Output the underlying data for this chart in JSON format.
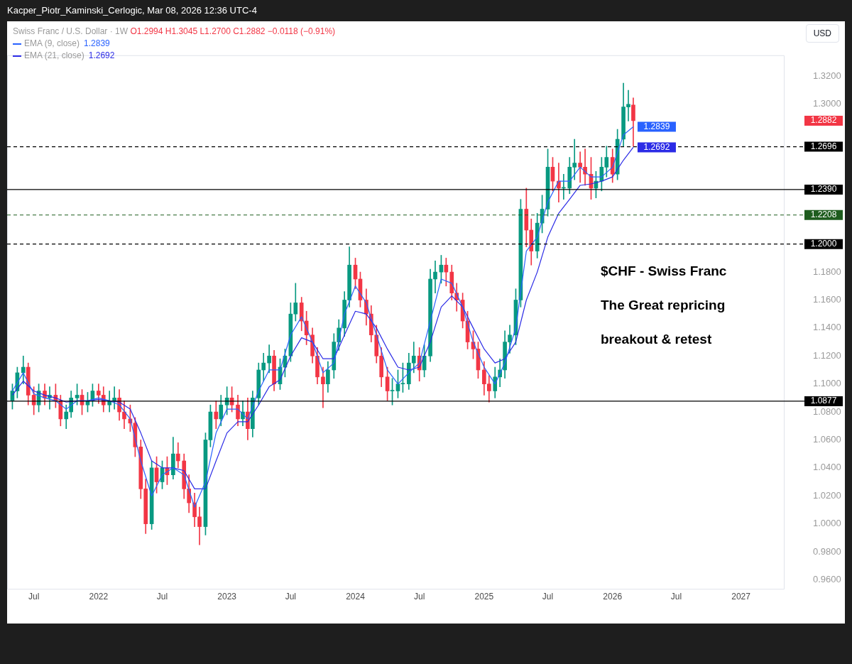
{
  "chart_data": {
    "type": "candlestick",
    "title": "Swiss Franc / U.S. Dollar · 1W",
    "subtitle": "O1.2994 H1.3045 L1.2700 C1.2882 −0.0118 (−0.91%)",
    "ylabel": "USD",
    "annotations": [
      "Kacper_Piotr_Kaminski_Cerlogic, Mar 08, 2026 12:36 UTC-4",
      "$CHF - Swiss Franc",
      "The Great repricing",
      "breakout & retest"
    ],
    "colors": [
      "#089981",
      "#089981",
      "#089981",
      "#f23645",
      "#f23645",
      "#089981",
      "#f23645",
      "#089981",
      "#f23645",
      "#f23645",
      "#089981",
      "#089981",
      "#089981",
      "#f23645",
      "#089981",
      "#089981",
      "#f23645",
      "#f23645",
      "#089981",
      "#089981",
      "#f23645",
      "#f23645",
      "#f23645",
      "#f23645",
      "#f23645",
      "#f23645",
      "#089981",
      "#f23645",
      "#089981",
      "#f23645",
      "#089981",
      "#f23645",
      "#f23645",
      "#f23645",
      "#f23645",
      "#f23645",
      "#089981",
      "#089981",
      "#f23645",
      "#089981",
      "#089981",
      "#f23645",
      "#f23645",
      "#089981",
      "#f23645",
      "#089981",
      "#089981",
      "#089981",
      "#089981",
      "#f23645",
      "#089981",
      "#089981",
      "#089981",
      "#089981",
      "#f23645",
      "#f23645",
      "#f23645",
      "#f23645",
      "#f23645",
      "#089981",
      "#089981",
      "#089981",
      "#089981",
      "#089981",
      "#f23645",
      "#f23645",
      "#f23645",
      "#f23645",
      "#f23645",
      "#f23645",
      "#f23645",
      "#089981",
      "#089981",
      "#089981",
      "#089981",
      "#089981",
      "#f23645",
      "#089981",
      "#089981",
      "#089981",
      "#089981",
      "#f23645",
      "#f23645",
      "#f23645",
      "#f23645",
      "#f23645",
      "#f23645",
      "#f23645",
      "#f23645",
      "#f23645",
      "#089981",
      "#089981",
      "#089981",
      "#089981",
      "#089981",
      "#089981",
      "#f23645",
      "#f23645",
      "#089981",
      "#089981",
      "#089981",
      "#f23645",
      "#f23645",
      "#089981",
      "#089981",
      "#089981",
      "#f23645",
      "#f23645",
      "#f23645",
      "#089981",
      "#089981",
      "#089981",
      "#f23645",
      "#089981",
      "#089981",
      "#089981",
      "#f23645"
    ],
    "value_labels": [
      null,
      null,
      null,
      null,
      null,
      null,
      null,
      null,
      null,
      null,
      null,
      null,
      null,
      null,
      null,
      null,
      null,
      null,
      null,
      null,
      null,
      null,
      null,
      null,
      null,
      null,
      null,
      null,
      null,
      null,
      null,
      null,
      null,
      null,
      null,
      null,
      null,
      null,
      null,
      null,
      null,
      null,
      null,
      null,
      null,
      null,
      null,
      null,
      null,
      null,
      null,
      null,
      null,
      null,
      null,
      null,
      null,
      null,
      null,
      null,
      null,
      null,
      null,
      null,
      null,
      null,
      null,
      null,
      null,
      null,
      null,
      null,
      null,
      null,
      null,
      null,
      null,
      null,
      null,
      null,
      null,
      null,
      null,
      null,
      null,
      null,
      null,
      null,
      null,
      null,
      null,
      null,
      null,
      null,
      null,
      null,
      null,
      null,
      null,
      null,
      null,
      null,
      null,
      null,
      null,
      null,
      null,
      null,
      null,
      null,
      null,
      null,
      null,
      null,
      null,
      null,
      "1.2882"
    ],
    "x": [
      "2021-05-01",
      "2021-05-15",
      "2021-06-01",
      "2021-06-15",
      "2021-07-01",
      "2021-07-15",
      "2021-08-01",
      "2021-08-15",
      "2021-09-01",
      "2021-09-15",
      "2021-10-01",
      "2021-10-15",
      "2021-11-01",
      "2021-11-15",
      "2021-12-01",
      "2021-12-15",
      "2022-01-01",
      "2022-01-15",
      "2022-02-01",
      "2022-02-15",
      "2022-03-01",
      "2022-03-15",
      "2022-04-01",
      "2022-04-15",
      "2022-05-01",
      "2022-05-15",
      "2022-06-01",
      "2022-06-15",
      "2022-07-01",
      "2022-07-15",
      "2022-08-01",
      "2022-08-15",
      "2022-09-01",
      "2022-09-15",
      "2022-10-01",
      "2022-10-15",
      "2022-11-01",
      "2022-11-15",
      "2022-12-01",
      "2022-12-15",
      "2023-01-01",
      "2023-01-15",
      "2023-02-01",
      "2023-02-15",
      "2023-03-01",
      "2023-03-15",
      "2023-04-01",
      "2023-04-15",
      "2023-05-01",
      "2023-05-15",
      "2023-06-01",
      "2023-06-15",
      "2023-07-01",
      "2023-07-15",
      "2023-08-01",
      "2023-08-15",
      "2023-09-01",
      "2023-09-15",
      "2023-10-01",
      "2023-10-15",
      "2023-11-01",
      "2023-11-15",
      "2023-12-01",
      "2023-12-15",
      "2024-01-01",
      "2024-01-15",
      "2024-02-01",
      "2024-02-15",
      "2024-03-01",
      "2024-03-15",
      "2024-04-01",
      "2024-04-15",
      "2024-05-01",
      "2024-05-15",
      "2024-06-01",
      "2024-06-15",
      "2024-07-01",
      "2024-07-15",
      "2024-08-01",
      "2024-08-15",
      "2024-09-01",
      "2024-09-15",
      "2024-10-01",
      "2024-10-15",
      "2024-11-01",
      "2024-11-15",
      "2024-12-01",
      "2024-12-15",
      "2025-01-01",
      "2025-01-15",
      "2025-02-01",
      "2025-02-15",
      "2025-03-01",
      "2025-03-15",
      "2025-04-01",
      "2025-04-15",
      "2025-05-01",
      "2025-05-15",
      "2025-06-01",
      "2025-06-15",
      "2025-07-01",
      "2025-07-15",
      "2025-08-01",
      "2025-08-15",
      "2025-09-01",
      "2025-09-15",
      "2025-10-01",
      "2025-10-15",
      "2025-11-01",
      "2025-11-15",
      "2025-12-01",
      "2025-12-15",
      "2026-01-01",
      "2026-01-15",
      "2026-02-01",
      "2026-02-15",
      "2026-03-01"
    ],
    "ohlc": [
      [
        1.088,
        1.1,
        1.082,
        1.095
      ],
      [
        1.095,
        1.112,
        1.09,
        1.108
      ],
      [
        1.108,
        1.12,
        1.1,
        1.112
      ],
      [
        1.112,
        1.115,
        1.085,
        1.092
      ],
      [
        1.092,
        1.098,
        1.078,
        1.085
      ],
      [
        1.085,
        1.1,
        1.08,
        1.095
      ],
      [
        1.095,
        1.1,
        1.085,
        1.09
      ],
      [
        1.09,
        1.098,
        1.082,
        1.092
      ],
      [
        1.092,
        1.1,
        1.083,
        1.088
      ],
      [
        1.088,
        1.092,
        1.07,
        1.075
      ],
      [
        1.075,
        1.085,
        1.068,
        1.08
      ],
      [
        1.08,
        1.095,
        1.076,
        1.09
      ],
      [
        1.09,
        1.1,
        1.085,
        1.092
      ],
      [
        1.092,
        1.096,
        1.078,
        1.085
      ],
      [
        1.085,
        1.094,
        1.08,
        1.088
      ],
      [
        1.088,
        1.1,
        1.084,
        1.095
      ],
      [
        1.095,
        1.1,
        1.086,
        1.092
      ],
      [
        1.092,
        1.098,
        1.08,
        1.085
      ],
      [
        1.085,
        1.095,
        1.08,
        1.088
      ],
      [
        1.088,
        1.098,
        1.082,
        1.09
      ],
      [
        1.09,
        1.096,
        1.074,
        1.08
      ],
      [
        1.08,
        1.088,
        1.068,
        1.075
      ],
      [
        1.075,
        1.085,
        1.066,
        1.072
      ],
      [
        1.072,
        1.076,
        1.048,
        1.055
      ],
      [
        1.055,
        1.06,
        1.018,
        1.025
      ],
      [
        1.025,
        1.032,
        0.993,
        1.0
      ],
      [
        1.0,
        1.045,
        0.996,
        1.04
      ],
      [
        1.04,
        1.048,
        1.022,
        1.03
      ],
      [
        1.03,
        1.045,
        1.025,
        1.04
      ],
      [
        1.04,
        1.048,
        1.028,
        1.035
      ],
      [
        1.035,
        1.062,
        1.032,
        1.05
      ],
      [
        1.05,
        1.058,
        1.04,
        1.045
      ],
      [
        1.045,
        1.05,
        1.018,
        1.025
      ],
      [
        1.025,
        1.035,
        1.008,
        1.015
      ],
      [
        1.015,
        1.022,
        0.998,
        1.005
      ],
      [
        1.005,
        1.012,
        0.985,
        0.998
      ],
      [
        0.998,
        1.065,
        0.992,
        1.06
      ],
      [
        1.06,
        1.085,
        1.055,
        1.08
      ],
      [
        1.08,
        1.088,
        1.068,
        1.075
      ],
      [
        1.075,
        1.092,
        1.07,
        1.085
      ],
      [
        1.085,
        1.098,
        1.078,
        1.09
      ],
      [
        1.09,
        1.098,
        1.08,
        1.085
      ],
      [
        1.085,
        1.092,
        1.07,
        1.075
      ],
      [
        1.075,
        1.088,
        1.07,
        1.08
      ],
      [
        1.08,
        1.09,
        1.06,
        1.068
      ],
      [
        1.068,
        1.095,
        1.062,
        1.09
      ],
      [
        1.09,
        1.115,
        1.085,
        1.11
      ],
      [
        1.11,
        1.122,
        1.102,
        1.115
      ],
      [
        1.115,
        1.128,
        1.108,
        1.12
      ],
      [
        1.12,
        1.124,
        1.095,
        1.1
      ],
      [
        1.1,
        1.118,
        1.096,
        1.112
      ],
      [
        1.112,
        1.125,
        1.105,
        1.12
      ],
      [
        1.12,
        1.158,
        1.116,
        1.15
      ],
      [
        1.15,
        1.172,
        1.145,
        1.158
      ],
      [
        1.158,
        1.162,
        1.138,
        1.145
      ],
      [
        1.145,
        1.152,
        1.128,
        1.135
      ],
      [
        1.135,
        1.14,
        1.115,
        1.12
      ],
      [
        1.12,
        1.126,
        1.1,
        1.105
      ],
      [
        1.105,
        1.112,
        1.083,
        1.1
      ],
      [
        1.1,
        1.116,
        1.094,
        1.11
      ],
      [
        1.11,
        1.136,
        1.104,
        1.13
      ],
      [
        1.13,
        1.146,
        1.124,
        1.14
      ],
      [
        1.14,
        1.166,
        1.134,
        1.16
      ],
      [
        1.16,
        1.198,
        1.155,
        1.185
      ],
      [
        1.185,
        1.19,
        1.168,
        1.175
      ],
      [
        1.175,
        1.18,
        1.155,
        1.16
      ],
      [
        1.16,
        1.168,
        1.142,
        1.15
      ],
      [
        1.15,
        1.156,
        1.13,
        1.135
      ],
      [
        1.135,
        1.142,
        1.115,
        1.12
      ],
      [
        1.12,
        1.126,
        1.098,
        1.105
      ],
      [
        1.105,
        1.112,
        1.088,
        1.095
      ],
      [
        1.095,
        1.104,
        1.085,
        1.095
      ],
      [
        1.095,
        1.11,
        1.09,
        1.1
      ],
      [
        1.1,
        1.115,
        1.094,
        1.1
      ],
      [
        1.1,
        1.122,
        1.096,
        1.115
      ],
      [
        1.115,
        1.13,
        1.108,
        1.12
      ],
      [
        1.12,
        1.126,
        1.102,
        1.11
      ],
      [
        1.11,
        1.128,
        1.105,
        1.12
      ],
      [
        1.12,
        1.182,
        1.116,
        1.175
      ],
      [
        1.175,
        1.188,
        1.165,
        1.18
      ],
      [
        1.18,
        1.192,
        1.172,
        1.185
      ],
      [
        1.185,
        1.19,
        1.17,
        1.18
      ],
      [
        1.18,
        1.185,
        1.16,
        1.165
      ],
      [
        1.165,
        1.172,
        1.152,
        1.16
      ],
      [
        1.16,
        1.165,
        1.14,
        1.145
      ],
      [
        1.145,
        1.152,
        1.125,
        1.13
      ],
      [
        1.13,
        1.138,
        1.118,
        1.125
      ],
      [
        1.125,
        1.13,
        1.104,
        1.11
      ],
      [
        1.11,
        1.116,
        1.092,
        1.1
      ],
      [
        1.1,
        1.106,
        1.087,
        1.095
      ],
      [
        1.095,
        1.112,
        1.09,
        1.105
      ],
      [
        1.105,
        1.118,
        1.098,
        1.11
      ],
      [
        1.11,
        1.138,
        1.104,
        1.13
      ],
      [
        1.13,
        1.142,
        1.122,
        1.135
      ],
      [
        1.135,
        1.168,
        1.128,
        1.16
      ],
      [
        1.16,
        1.232,
        1.155,
        1.225
      ],
      [
        1.225,
        1.24,
        1.198,
        1.21
      ],
      [
        1.21,
        1.218,
        1.185,
        1.195
      ],
      [
        1.195,
        1.222,
        1.19,
        1.215
      ],
      [
        1.215,
        1.235,
        1.208,
        1.225
      ],
      [
        1.225,
        1.268,
        1.22,
        1.255
      ],
      [
        1.255,
        1.262,
        1.238,
        1.245
      ],
      [
        1.245,
        1.258,
        1.23,
        1.24
      ],
      [
        1.24,
        1.25,
        1.232,
        1.24
      ],
      [
        1.24,
        1.262,
        1.236,
        1.255
      ],
      [
        1.255,
        1.275,
        1.246,
        1.258
      ],
      [
        1.258,
        1.266,
        1.244,
        1.255
      ],
      [
        1.255,
        1.268,
        1.242,
        1.25
      ],
      [
        1.25,
        1.262,
        1.232,
        1.24
      ],
      [
        1.24,
        1.252,
        1.233,
        1.245
      ],
      [
        1.245,
        1.262,
        1.238,
        1.255
      ],
      [
        1.255,
        1.27,
        1.248,
        1.262
      ],
      [
        1.262,
        1.268,
        1.244,
        1.25
      ],
      [
        1.25,
        1.282,
        1.246,
        1.275
      ],
      [
        1.275,
        1.315,
        1.27,
        1.298
      ],
      [
        1.298,
        1.31,
        1.288,
        1.3
      ],
      [
        1.2994,
        1.3045,
        1.27,
        1.2882
      ]
    ],
    "series": [
      {
        "name": "EMA (9, close)",
        "type": "line",
        "color": "#2962ff",
        "x": [
          "2021-05-01",
          "2021-06-01",
          "2021-07-01",
          "2021-08-01",
          "2021-09-01",
          "2021-10-01",
          "2021-11-01",
          "2021-12-01",
          "2022-01-01",
          "2022-02-01",
          "2022-03-01",
          "2022-04-01",
          "2022-05-01",
          "2022-06-01",
          "2022-07-01",
          "2022-08-01",
          "2022-09-01",
          "2022-10-01",
          "2022-11-01",
          "2022-12-01",
          "2023-01-01",
          "2023-02-01",
          "2023-03-01",
          "2023-04-01",
          "2023-05-01",
          "2023-06-01",
          "2023-07-01",
          "2023-08-01",
          "2023-09-01",
          "2023-10-01",
          "2023-11-01",
          "2023-12-01",
          "2024-01-01",
          "2024-02-01",
          "2024-03-01",
          "2024-04-01",
          "2024-05-01",
          "2024-06-01",
          "2024-07-01",
          "2024-08-01",
          "2024-09-01",
          "2024-10-01",
          "2024-11-01",
          "2024-12-01",
          "2025-01-01",
          "2025-02-01",
          "2025-03-01",
          "2025-04-01",
          "2025-05-01",
          "2025-06-01",
          "2025-07-01",
          "2025-08-01",
          "2025-09-01",
          "2025-10-01",
          "2025-11-01",
          "2025-12-01",
          "2026-01-01",
          "2026-02-01",
          "2026-03-01"
        ],
        "values": [
          1.095,
          1.108,
          1.093,
          1.09,
          1.088,
          1.082,
          1.088,
          1.088,
          1.09,
          1.088,
          1.085,
          1.075,
          1.045,
          1.02,
          1.035,
          1.04,
          1.035,
          1.012,
          1.03,
          1.065,
          1.082,
          1.082,
          1.075,
          1.095,
          1.11,
          1.11,
          1.135,
          1.148,
          1.13,
          1.108,
          1.115,
          1.15,
          1.17,
          1.158,
          1.135,
          1.11,
          1.1,
          1.108,
          1.115,
          1.145,
          1.175,
          1.172,
          1.155,
          1.13,
          1.112,
          1.1,
          1.115,
          1.14,
          1.195,
          1.205,
          1.23,
          1.245,
          1.245,
          1.255,
          1.248,
          1.248,
          1.255,
          1.278,
          1.2839
        ],
        "value_labels": [
          null,
          null,
          null,
          null,
          null,
          null,
          null,
          null,
          null,
          null,
          null,
          null,
          null,
          null,
          null,
          null,
          null,
          null,
          null,
          null,
          null,
          null,
          null,
          null,
          null,
          null,
          null,
          null,
          null,
          null,
          null,
          null,
          null,
          null,
          null,
          null,
          null,
          null,
          null,
          null,
          null,
          null,
          null,
          null,
          null,
          null,
          null,
          null,
          null,
          null,
          null,
          null,
          null,
          null,
          null,
          null,
          null,
          null,
          "1.2839"
        ]
      },
      {
        "name": "EMA (21, close)",
        "type": "line",
        "color": "#2b2be6",
        "x": [
          "2021-05-01",
          "2021-06-01",
          "2021-07-01",
          "2021-08-01",
          "2021-09-01",
          "2021-10-01",
          "2021-11-01",
          "2021-12-01",
          "2022-01-01",
          "2022-02-01",
          "2022-03-01",
          "2022-04-01",
          "2022-05-01",
          "2022-06-01",
          "2022-07-01",
          "2022-08-01",
          "2022-09-01",
          "2022-10-01",
          "2022-11-01",
          "2022-12-01",
          "2023-01-01",
          "2023-02-01",
          "2023-03-01",
          "2023-04-01",
          "2023-05-01",
          "2023-06-01",
          "2023-07-01",
          "2023-08-01",
          "2023-09-01",
          "2023-10-01",
          "2023-11-01",
          "2023-12-01",
          "2024-01-01",
          "2024-02-01",
          "2024-03-01",
          "2024-04-01",
          "2024-05-01",
          "2024-06-01",
          "2024-07-01",
          "2024-08-01",
          "2024-09-01",
          "2024-10-01",
          "2024-11-01",
          "2024-12-01",
          "2025-01-01",
          "2025-02-01",
          "2025-03-01",
          "2025-04-01",
          "2025-05-01",
          "2025-06-01",
          "2025-07-01",
          "2025-08-01",
          "2025-09-01",
          "2025-10-01",
          "2025-11-01",
          "2025-12-01",
          "2026-01-01",
          "2026-02-01",
          "2026-03-01"
        ],
        "values": [
          1.092,
          1.102,
          1.095,
          1.092,
          1.09,
          1.087,
          1.088,
          1.088,
          1.089,
          1.088,
          1.087,
          1.082,
          1.065,
          1.045,
          1.04,
          1.04,
          1.038,
          1.025,
          1.025,
          1.045,
          1.065,
          1.073,
          1.073,
          1.085,
          1.098,
          1.103,
          1.12,
          1.133,
          1.13,
          1.118,
          1.118,
          1.135,
          1.152,
          1.15,
          1.14,
          1.125,
          1.112,
          1.11,
          1.112,
          1.13,
          1.155,
          1.163,
          1.155,
          1.14,
          1.125,
          1.115,
          1.118,
          1.13,
          1.16,
          1.18,
          1.205,
          1.222,
          1.232,
          1.242,
          1.243,
          1.245,
          1.248,
          1.26,
          1.2692
        ],
        "value_labels": [
          null,
          null,
          null,
          null,
          null,
          null,
          null,
          null,
          null,
          null,
          null,
          null,
          null,
          null,
          null,
          null,
          null,
          null,
          null,
          null,
          null,
          null,
          null,
          null,
          null,
          null,
          null,
          null,
          null,
          null,
          null,
          null,
          null,
          null,
          null,
          null,
          null,
          null,
          null,
          null,
          null,
          null,
          null,
          null,
          null,
          null,
          null,
          null,
          null,
          null,
          null,
          null,
          null,
          null,
          null,
          null,
          null,
          null,
          "1.2692"
        ]
      }
    ],
    "ref_lines": [
      {
        "axis": "y",
        "value": 1.2696,
        "label": "1.2696",
        "color": "#000000",
        "line_style": "dashed"
      },
      {
        "axis": "y",
        "value": 1.239,
        "label": "1.2390",
        "color": "#000000",
        "line_style": "solid"
      },
      {
        "axis": "y",
        "value": 1.2208,
        "label": "1.2208",
        "color": "#1e5c1e",
        "line_style": "dashed"
      },
      {
        "axis": "y",
        "value": 1.2,
        "label": "1.2000",
        "color": "#000000",
        "line_style": "dashed"
      },
      {
        "axis": "y",
        "value": 1.0877,
        "label": "1.0877",
        "color": "#000000",
        "line_style": "solid"
      }
    ],
    "xlim": [
      "2021-04-16",
      "2027-05-05"
    ],
    "xticks": [
      {
        "value": "2021-07-01",
        "label": "Jul"
      },
      {
        "value": "2022-01-01",
        "label": "2022"
      },
      {
        "value": "2022-07-01",
        "label": "Jul"
      },
      {
        "value": "2023-01-01",
        "label": "2023"
      },
      {
        "value": "2023-07-01",
        "label": "Jul"
      },
      {
        "value": "2024-01-01",
        "label": "2024"
      },
      {
        "value": "2024-07-01",
        "label": "Jul"
      },
      {
        "value": "2025-01-01",
        "label": "2025"
      },
      {
        "value": "2025-07-01",
        "label": "Jul"
      },
      {
        "value": "2026-01-01",
        "label": "2026"
      },
      {
        "value": "2026-07-01",
        "label": "Jul"
      },
      {
        "value": "2027-01-01",
        "label": "2027"
      }
    ],
    "ylim": [
      0.953,
      1.335
    ],
    "yticks": [
      {
        "value": 0.96,
        "label": "0.9600"
      },
      {
        "value": 0.98,
        "label": "0.9800"
      },
      {
        "value": 1.0,
        "label": "1.0000"
      },
      {
        "value": 1.02,
        "label": "1.0200"
      },
      {
        "value": 1.04,
        "label": "1.0400"
      },
      {
        "value": 1.06,
        "label": "1.0600"
      },
      {
        "value": 1.08,
        "label": "1.0800"
      },
      {
        "value": 1.1,
        "label": "1.1000"
      },
      {
        "value": 1.12,
        "label": "1.1200"
      },
      {
        "value": 1.14,
        "label": "1.1400"
      },
      {
        "value": 1.16,
        "label": "1.1600"
      },
      {
        "value": 1.18,
        "label": "1.1800"
      },
      {
        "value": 1.3,
        "label": "1.3000"
      },
      {
        "value": 1.32,
        "label": "1.3200"
      }
    ],
    "grid": false,
    "legend": "top left",
    "marker": "none",
    "line_style": "solid"
  }
}
